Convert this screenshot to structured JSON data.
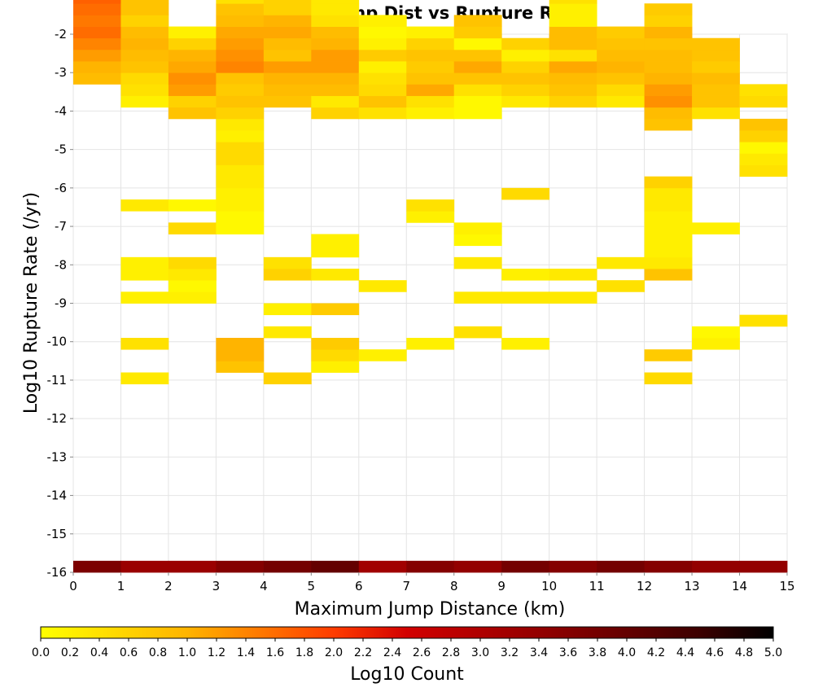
{
  "chart_data": {
    "type": "heatmap",
    "title": "Maximum Jump Dist vs Rupture Rate",
    "xlabel": "Maximum Jump Distance (km)",
    "ylabel": "Log10 Rupture Rate (/yr)",
    "xlim": [
      0,
      15
    ],
    "ylim": [
      -16,
      -2
    ],
    "x_ticks": [
      0,
      1,
      2,
      3,
      4,
      5,
      6,
      7,
      8,
      9,
      10,
      11,
      12,
      13,
      14,
      15
    ],
    "y_ticks": [
      -2,
      -3,
      -4,
      -5,
      -6,
      -7,
      -8,
      -9,
      -10,
      -11,
      -12,
      -13,
      -14,
      -15,
      -16
    ],
    "x_bin_width": 1,
    "y_bin_width": 0.3,
    "grid": true,
    "colorscale": {
      "label": "Log10 Count",
      "min": 0.0,
      "max": 5.0,
      "ticks": [
        "0.0",
        "0.2",
        "0.4",
        "0.6",
        "0.8",
        "1.0",
        "1.2",
        "1.4",
        "1.6",
        "1.8",
        "2.0",
        "2.2",
        "2.4",
        "2.6",
        "2.8",
        "3.0",
        "3.2",
        "3.4",
        "3.6",
        "3.8",
        "4.0",
        "4.2",
        "4.4",
        "4.6",
        "4.8",
        "5.0"
      ],
      "stops": [
        {
          "value": 0.0,
          "color": "#ffff00"
        },
        {
          "value": 1.0,
          "color": "#ffb400"
        },
        {
          "value": 2.0,
          "color": "#ff3c00"
        },
        {
          "value": 2.5,
          "color": "#d20000"
        },
        {
          "value": 3.5,
          "color": "#8c0000"
        },
        {
          "value": 4.5,
          "color": "#3c0000"
        },
        {
          "value": 5.0,
          "color": "#000000"
        }
      ]
    },
    "columns": [
      {
        "x": 0,
        "y_start": -16,
        "values": [
          3.7
        ]
      },
      {
        "x": 0,
        "y_start": -3.3,
        "values": [
          0.9,
          1.0,
          1.2,
          1.4,
          1.6,
          1.5,
          1.6,
          1.7,
          1.8,
          1.6,
          1.5,
          1.4,
          1.3,
          1.3,
          1.1,
          1.0,
          0.8,
          0.7,
          0.6,
          0.4,
          0.6,
          0.4,
          0.6,
          0.5,
          0.6,
          0.4,
          0.7,
          0.6,
          0.4,
          0.6,
          0.4,
          0.7,
          0.4,
          0.2
        ]
      },
      {
        "x": 1,
        "y_start": -16,
        "values": [
          3.3
        ]
      },
      {
        "x": 1,
        "y_start": -3.9,
        "values": [
          0.2,
          0.4,
          0.5,
          0.8,
          0.9,
          1.0,
          0.9,
          0.6,
          0.8,
          0.8,
          0.2
        ]
      },
      {
        "x": 1,
        "y_start": -6.6,
        "values": [
          0.3
        ]
      },
      {
        "x": 1,
        "y_start": -8.4,
        "values": [
          0.2,
          0.2
        ]
      },
      {
        "x": 1,
        "y_start": -9,
        "values": [
          0.2
        ]
      },
      {
        "x": 1,
        "y_start": -10.2,
        "values": [
          0.4
        ]
      },
      {
        "x": 1,
        "y_start": -11.1,
        "values": [
          0.3
        ]
      },
      {
        "x": 2,
        "y_start": -16,
        "values": [
          3.3
        ]
      },
      {
        "x": 2,
        "y_start": -4.2,
        "values": [
          0.8,
          0.6,
          1.2,
          1.3,
          1.1,
          1.0,
          0.6,
          0.2
        ]
      },
      {
        "x": 2,
        "y_start": -6.6,
        "values": [
          0.1
        ]
      },
      {
        "x": 2,
        "y_start": -7.2,
        "values": [
          0.5
        ]
      },
      {
        "x": 2,
        "y_start": -8.4,
        "values": [
          0.4
        ]
      },
      {
        "x": 2,
        "y_start": -9,
        "values": [
          0.2,
          0.1,
          0.3,
          0.5
        ]
      },
      {
        "x": 3,
        "y_start": -16,
        "values": [
          3.6
        ]
      },
      {
        "x": 3,
        "y_start": -3.9,
        "values": [
          0.5,
          0.9,
          0.8,
          1.4,
          1.3,
          1.2,
          1.1,
          0.9,
          0.8,
          0.4
        ]
      },
      {
        "x": 3,
        "y_start": -7.2,
        "values": [
          0.1,
          0.1,
          0.2,
          0.2,
          0.3,
          0.3,
          0.5,
          0.5,
          0.2,
          0.3,
          0.6,
          0.8,
          0.7
        ]
      },
      {
        "x": 3,
        "y_start": -10.8,
        "values": [
          0.8,
          1.0,
          1.0
        ]
      },
      {
        "x": 4,
        "y_start": -16,
        "values": [
          3.8
        ]
      },
      {
        "x": 4,
        "y_start": -3.9,
        "values": [
          0.8,
          0.9,
          1.0,
          1.2,
          0.8,
          0.9,
          1.1,
          1.0,
          0.6,
          0.6,
          0.3
        ]
      },
      {
        "x": 4,
        "y_start": -8.4,
        "values": [
          0.6,
          0.4
        ]
      },
      {
        "x": 4,
        "y_start": -9.3,
        "values": [
          0.2
        ]
      },
      {
        "x": 4,
        "y_start": -9.9,
        "values": [
          0.3
        ]
      },
      {
        "x": 4,
        "y_start": -11.1,
        "values": [
          0.6
        ]
      },
      {
        "x": 5,
        "y_start": -16,
        "values": [
          4.0
        ]
      },
      {
        "x": 5,
        "y_start": -4.2,
        "values": [
          0.6,
          0.3,
          0.9,
          1.0,
          1.2,
          1.2,
          1.0,
          0.9,
          0.4,
          0.3,
          0.3,
          0.3
        ]
      },
      {
        "x": 5,
        "y_start": -7.8,
        "values": [
          0.2,
          0.2
        ]
      },
      {
        "x": 5,
        "y_start": -8.4,
        "values": [
          0.3
        ]
      },
      {
        "x": 5,
        "y_start": -9.3,
        "values": [
          0.7
        ]
      },
      {
        "x": 5,
        "y_start": -10.8,
        "values": [
          0.2,
          0.5,
          0.7
        ]
      },
      {
        "x": 6,
        "y_start": -16,
        "values": [
          3.2
        ]
      },
      {
        "x": 6,
        "y_start": -4.2,
        "values": [
          0.4,
          0.8,
          0.5,
          0.4,
          0.2,
          0.7,
          0.2,
          0.1,
          0.2
        ]
      },
      {
        "x": 6,
        "y_start": -8.7,
        "values": [
          0.3
        ]
      },
      {
        "x": 6,
        "y_start": -10.5,
        "values": [
          0.2
        ]
      },
      {
        "x": 7,
        "y_start": -16,
        "values": [
          3.6
        ]
      },
      {
        "x": 7,
        "y_start": -4.2,
        "values": [
          0.2,
          0.4,
          1.1,
          0.8,
          0.7,
          0.8,
          0.6,
          0.2
        ]
      },
      {
        "x": 7,
        "y_start": -6.9,
        "values": [
          0.2,
          0.4
        ]
      },
      {
        "x": 7,
        "y_start": -10.2,
        "values": [
          0.2
        ]
      },
      {
        "x": 8,
        "y_start": -16,
        "values": [
          3.4
        ]
      },
      {
        "x": 8,
        "y_start": -4.2,
        "values": [
          0.1,
          0.1,
          0.4,
          0.8,
          1.1,
          0.8,
          0.1,
          0.7,
          0.8
        ]
      },
      {
        "x": 8,
        "y_start": -7.5,
        "values": [
          0.1,
          0.2
        ]
      },
      {
        "x": 8,
        "y_start": -8.1,
        "values": [
          0.3
        ]
      },
      {
        "x": 8,
        "y_start": -9,
        "values": [
          0.3
        ]
      },
      {
        "x": 8,
        "y_start": -9.9,
        "values": [
          0.4
        ]
      },
      {
        "x": 9,
        "y_start": -16,
        "values": [
          3.8
        ]
      },
      {
        "x": 9,
        "y_start": -3.9,
        "values": [
          0.3,
          0.6,
          0.8,
          0.6,
          0.2,
          0.6
        ]
      },
      {
        "x": 9,
        "y_start": -6.3,
        "values": [
          0.5
        ]
      },
      {
        "x": 9,
        "y_start": -8.4,
        "values": [
          0.2
        ]
      },
      {
        "x": 9,
        "y_start": -9,
        "values": [
          0.3
        ]
      },
      {
        "x": 9,
        "y_start": -10.2,
        "values": [
          0.2
        ]
      },
      {
        "x": 10,
        "y_start": -16,
        "values": [
          3.6
        ]
      },
      {
        "x": 10,
        "y_start": -3.9,
        "values": [
          0.6,
          0.8,
          0.9,
          1.1,
          0.4,
          0.9,
          0.9,
          0.2,
          0.2,
          0.4
        ]
      },
      {
        "x": 10,
        "y_start": -8.4,
        "values": [
          0.3
        ]
      },
      {
        "x": 10,
        "y_start": -9,
        "values": [
          0.3
        ]
      },
      {
        "x": 11,
        "y_start": -16,
        "values": [
          3.8
        ]
      },
      {
        "x": 11,
        "y_start": -3.9,
        "values": [
          0.3,
          0.5,
          0.8,
          1.0,
          0.9,
          0.8,
          0.7
        ]
      },
      {
        "x": 11,
        "y_start": -8.1,
        "values": [
          0.3
        ]
      },
      {
        "x": 11,
        "y_start": -8.7,
        "values": [
          0.4
        ]
      },
      {
        "x": 12,
        "y_start": -16,
        "values": [
          3.6
        ]
      },
      {
        "x": 12,
        "y_start": -3.9,
        "values": [
          0.3
        ]
      },
      {
        "x": 12,
        "y_start": -4.5,
        "values": [
          0.8,
          0.9,
          1.3,
          1.2,
          1.0,
          0.9,
          0.9,
          0.8,
          1.0,
          0.6,
          0.7
        ]
      },
      {
        "x": 12,
        "y_start": -8.4,
        "values": [
          0.8,
          0.3,
          0.2,
          0.2,
          0.2,
          0.2,
          0.3,
          0.3,
          0.6
        ]
      },
      {
        "x": 12,
        "y_start": -10.5,
        "values": [
          0.7
        ]
      },
      {
        "x": 12,
        "y_start": -11.1,
        "values": [
          0.5
        ]
      },
      {
        "x": 13,
        "y_start": -16,
        "values": [
          3.4
        ]
      },
      {
        "x": 13,
        "y_start": -4.2,
        "values": [
          0.4,
          0.8,
          0.8,
          0.9,
          0.7,
          0.8,
          0.8
        ]
      },
      {
        "x": 13,
        "y_start": -7.2,
        "values": [
          0.2
        ]
      },
      {
        "x": 13,
        "y_start": -10.2,
        "values": [
          0.2,
          0.1
        ]
      },
      {
        "x": 14,
        "y_start": -16,
        "values": [
          3.4
        ]
      },
      {
        "x": 14,
        "y_start": -3.9,
        "values": [
          0.5,
          0.4
        ]
      },
      {
        "x": 14,
        "y_start": -5.7,
        "values": [
          0.4,
          0.3,
          0.1,
          0.6,
          0.8
        ]
      },
      {
        "x": 14,
        "y_start": -9.6,
        "values": [
          0.4
        ]
      }
    ]
  }
}
